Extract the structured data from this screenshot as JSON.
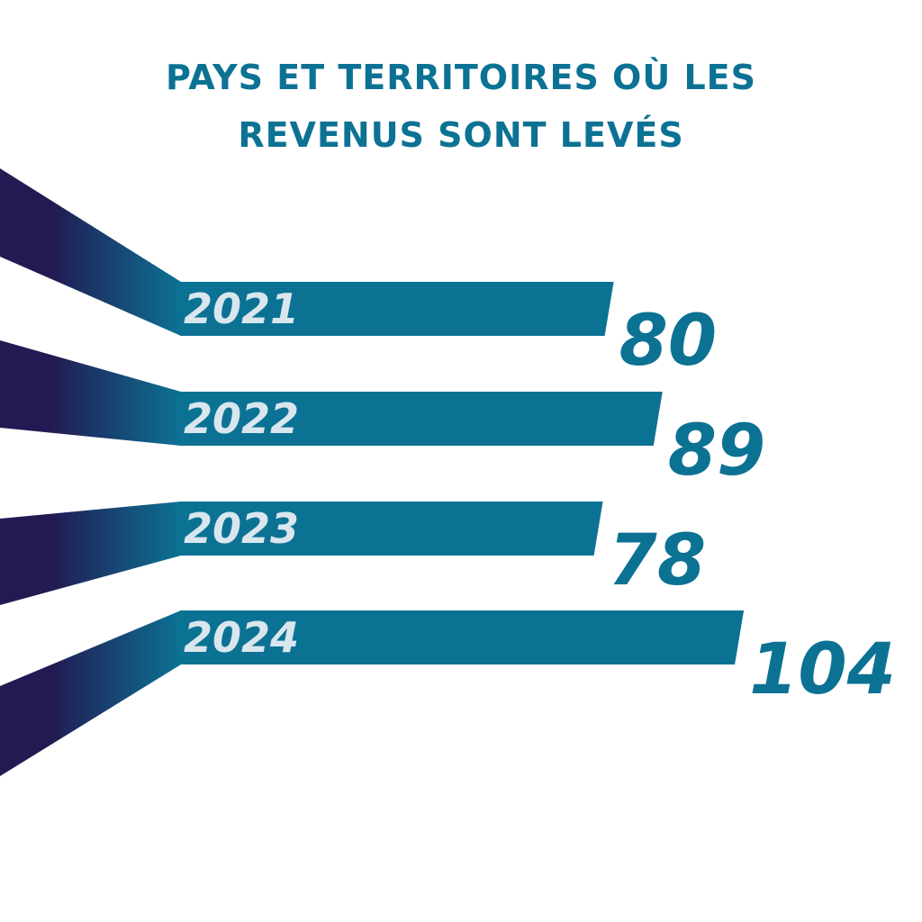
{
  "title": {
    "line1": "PAYS ET TERRITOIRES OÙ LES",
    "line2": "REVENUS SONT LEVÉS"
  },
  "colors": {
    "bar": "#0c7294",
    "ribbon_dark": "#221a52",
    "year_text": "#d9e6ee",
    "value_text": "#0c7294"
  },
  "chart_data": {
    "type": "bar",
    "orientation": "horizontal",
    "title": "PAYS ET TERRITOIRES OÙ LES REVENUS SONT LEVÉS",
    "categories": [
      "2021",
      "2022",
      "2023",
      "2024"
    ],
    "values": [
      80,
      89,
      78,
      104
    ],
    "value_labels": [
      "80",
      "89",
      "78",
      "104"
    ],
    "xlabel": "",
    "ylabel": "",
    "grid": false,
    "legend": "none"
  }
}
